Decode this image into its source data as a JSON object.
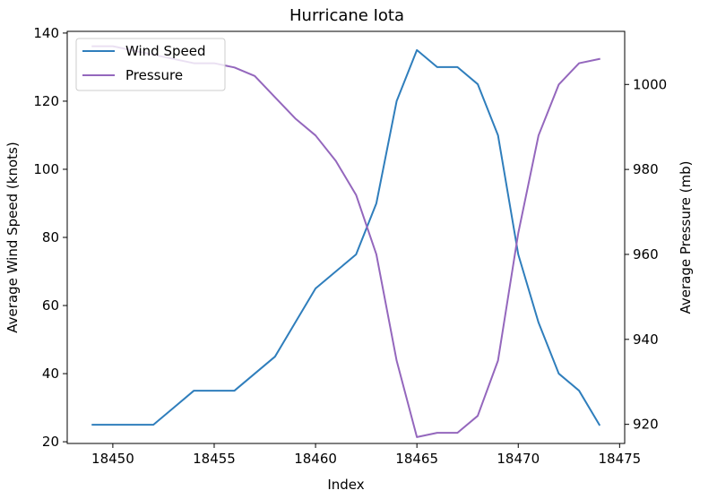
{
  "chart_data": {
    "type": "line",
    "title": "Hurricane Iota",
    "xlabel": "Index",
    "ylabel": "Average Wind Speed (knots)",
    "y2label": "Average Pressure (mb)",
    "xlim": [
      18447.75,
      18475.25
    ],
    "ylim": [
      19.5,
      140.5
    ],
    "y2lim": [
      915.5,
      1012.5
    ],
    "x_ticks": [
      18450,
      18455,
      18460,
      18465,
      18470,
      18475
    ],
    "y_ticks": [
      20,
      40,
      60,
      80,
      100,
      120,
      140
    ],
    "y2_ticks": [
      920,
      940,
      960,
      980,
      1000
    ],
    "x": [
      18449,
      18450,
      18451,
      18452,
      18453,
      18454,
      18455,
      18456,
      18457,
      18458,
      18459,
      18460,
      18461,
      18462,
      18463,
      18464,
      18465,
      18466,
      18467,
      18468,
      18469,
      18470,
      18471,
      18472,
      18473,
      18474
    ],
    "legend_position": "upper-left",
    "grid": false,
    "series": [
      {
        "name": "Wind Speed",
        "axis": "left",
        "color": "#2f7ebc",
        "values": [
          25,
          25,
          25,
          25,
          30,
          35,
          35,
          35,
          40,
          45,
          55,
          65,
          70,
          75,
          90,
          120,
          135,
          130,
          130,
          125,
          110,
          75,
          55,
          40,
          35,
          25
        ]
      },
      {
        "name": "Pressure",
        "axis": "right",
        "color": "#9467bd",
        "values": [
          1009,
          1009,
          1008,
          1007,
          1006,
          1005,
          1005,
          1004,
          1002,
          997,
          992,
          988,
          982,
          974,
          960,
          935,
          917,
          918,
          918,
          922,
          935,
          965,
          988,
          1000,
          1005,
          1006
        ]
      }
    ]
  }
}
